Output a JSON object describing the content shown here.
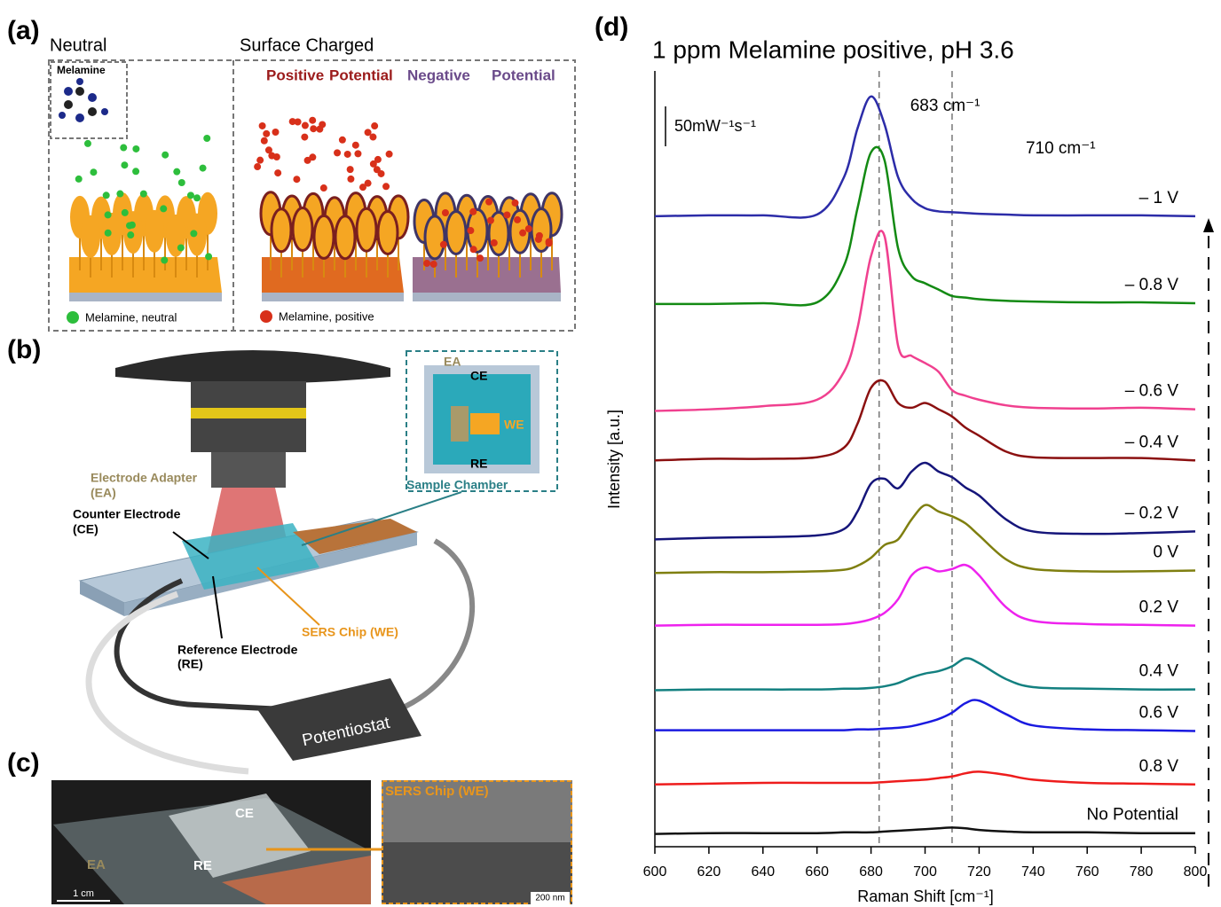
{
  "panels": {
    "a": {
      "label": "(a)",
      "neutral": "Neutral",
      "surface_charged": "Surface Charged",
      "melamine": "Melamine",
      "positive": "Positive",
      "positive_potential": "Potential",
      "negative": "Negative",
      "negative_potential": "Potential",
      "legend_neutral": "Melamine, neutral",
      "legend_positive": "Melamine, positive"
    },
    "b": {
      "label": "(b)",
      "inset_ea": "EA",
      "inset_ce": "CE",
      "inset_we": "WE",
      "inset_re": "RE",
      "electrode_adapter": "Electrode Adapter",
      "electrode_adapter_abbr": "(EA)",
      "sample_chamber": "Sample Chamber",
      "counter_electrode": "Counter Electrode",
      "counter_electrode_abbr": "(CE)",
      "reference_electrode": "Reference Electrode",
      "reference_electrode_abbr": "(RE)",
      "sers_chip": "SERS Chip (WE)",
      "potentiostat": "Potentiostat"
    },
    "c": {
      "label": "(c)",
      "ce": "CE",
      "ea": "EA",
      "re": "RE",
      "scale_photo": "1 cm",
      "sers_chip": "SERS Chip (WE)",
      "scale_sem": "200 nm"
    },
    "d": {
      "label": "(d)"
    }
  },
  "chart_data": {
    "type": "line",
    "title": "1 ppm Melamine positive, pH 3.6",
    "x_label": "Raman Shift [cm⁻¹]",
    "y_label": "Intensity [a.u.]",
    "x": [
      600,
      620,
      640,
      660,
      670,
      675,
      680,
      685,
      690,
      695,
      700,
      705,
      710,
      715,
      720,
      730,
      740,
      760,
      780,
      800
    ],
    "xlim": [
      600,
      800
    ],
    "xticks": [
      600,
      620,
      640,
      660,
      680,
      700,
      720,
      740,
      760,
      780,
      800
    ],
    "ylim": [
      0,
      972
    ],
    "scale_bar": {
      "value": 50,
      "label": "50mW⁻¹s⁻¹"
    },
    "reference_lines": [
      {
        "x": 683,
        "label": "683 cm⁻¹"
      },
      {
        "x": 710,
        "label": "710 cm⁻¹"
      }
    ],
    "series": [
      {
        "name": "No Potential",
        "color": "#111111",
        "values": [
          16,
          17,
          17,
          17,
          18,
          18,
          18,
          19,
          20,
          21,
          22,
          23,
          24,
          23,
          21,
          19,
          18,
          18,
          17,
          17
        ]
      },
      {
        "name": "0.8 V",
        "color": "#ee1c1c",
        "values": [
          78,
          79,
          80,
          80,
          80,
          80,
          80,
          81,
          82,
          83,
          84,
          86,
          88,
          92,
          94,
          90,
          84,
          80,
          79,
          78
        ]
      },
      {
        "name": "0.6 V",
        "color": "#1a1ae0",
        "values": [
          146,
          146,
          146,
          146,
          146,
          147,
          147,
          148,
          149,
          151,
          155,
          160,
          168,
          180,
          183,
          166,
          152,
          147,
          146,
          145
        ]
      },
      {
        "name": "0.4 V",
        "color": "#138080",
        "values": [
          196,
          197,
          197,
          197,
          198,
          198,
          199,
          201,
          205,
          212,
          217,
          220,
          226,
          236,
          230,
          210,
          200,
          198,
          197,
          197
        ]
      },
      {
        "name": "0.2 V",
        "color": "#ee22ee",
        "values": [
          277,
          278,
          278,
          278,
          279,
          281,
          285,
          293,
          310,
          340,
          350,
          345,
          348,
          353,
          340,
          300,
          283,
          279,
          278,
          277
        ]
      },
      {
        "name": "0 V",
        "color": "#7f7f10",
        "values": [
          343,
          344,
          344,
          345,
          347,
          352,
          362,
          378,
          385,
          410,
          428,
          420,
          414,
          405,
          390,
          360,
          348,
          345,
          345,
          346
        ]
      },
      {
        "name": "– 0.2 V",
        "color": "#15157a",
        "values": [
          385,
          387,
          388,
          390,
          398,
          420,
          455,
          461,
          449,
          470,
          481,
          470,
          463,
          450,
          440,
          410,
          395,
          392,
          393,
          395
        ]
      },
      {
        "name": "– 0.4 V",
        "color": "#8b1010",
        "values": [
          484,
          486,
          486,
          488,
          500,
          530,
          575,
          583,
          556,
          550,
          556,
          548,
          539,
          525,
          515,
          495,
          488,
          487,
          487,
          484
        ]
      },
      {
        "name": "– 0.6 V",
        "color": "#f0408f",
        "values": [
          546,
          548,
          552,
          560,
          595,
          650,
          740,
          765,
          628,
          615,
          606,
          595,
          572,
          565,
          560,
          553,
          550,
          549,
          550,
          548
        ]
      },
      {
        "name": "– 0.8 V",
        "color": "#138a13",
        "values": [
          680,
          680,
          681,
          682,
          728,
          800,
          870,
          860,
          750,
          715,
          706,
          698,
          690,
          688,
          686,
          684,
          683,
          682,
          682,
          681
        ]
      },
      {
        "name": "– 1 V",
        "color": "#2c2ca8",
        "values": [
          790,
          791,
          791,
          792,
          839,
          900,
          940,
          905,
          839,
          812,
          800,
          796,
          795,
          794,
          793,
          792,
          791,
          791,
          791,
          790
        ]
      }
    ]
  }
}
